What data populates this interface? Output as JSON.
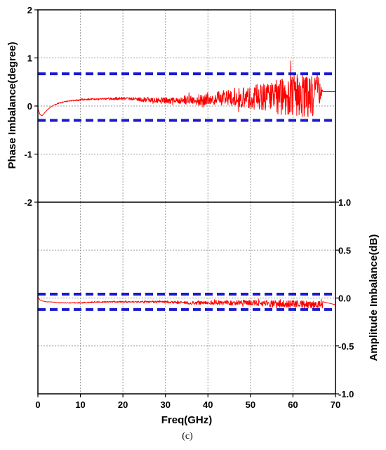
{
  "chart_data": [
    {
      "type": "line",
      "panel": "top",
      "xlim": [
        0,
        70
      ],
      "ylim": [
        -2,
        2
      ],
      "x_ticks": [],
      "y_ticks": [
        "-2",
        "-1",
        "0",
        "1",
        "2"
      ],
      "ylabel": "Phase Imbalance(degree)",
      "grid": true,
      "series": [
        {
          "color": "#ff0000",
          "x": [
            0,
            0.5,
            1,
            1.5,
            2,
            3,
            4,
            5,
            6,
            7,
            8,
            10,
            12,
            14,
            16,
            18,
            20,
            22,
            24,
            26,
            28,
            30,
            32,
            34,
            36,
            38,
            40,
            42,
            44,
            46,
            48,
            50,
            52,
            54,
            56,
            58,
            60,
            62,
            64,
            66,
            67,
            70
          ],
          "y": [
            -0.05,
            -0.18,
            -0.2,
            -0.15,
            -0.1,
            -0.02,
            0.03,
            0.06,
            0.08,
            0.1,
            0.11,
            0.13,
            0.14,
            0.15,
            0.15,
            0.15,
            0.16,
            0.15,
            0.14,
            0.13,
            0.12,
            0.11,
            0.11,
            0.12,
            0.13,
            0.13,
            0.14,
            0.15,
            0.16,
            0.17,
            0.18,
            0.18,
            0.19,
            0.2,
            0.2,
            0.21,
            0.21,
            0.22,
            0.22,
            0.22,
            0.3,
            0.3
          ],
          "noise_amplitude": [
            0,
            0,
            0,
            0,
            0,
            0,
            0.01,
            0.01,
            0.01,
            0.01,
            0.01,
            0.02,
            0.02,
            0.02,
            0.02,
            0.03,
            0.03,
            0.03,
            0.04,
            0.05,
            0.06,
            0.07,
            0.07,
            0.08,
            0.1,
            0.12,
            0.14,
            0.16,
            0.18,
            0.2,
            0.22,
            0.25,
            0.27,
            0.3,
            0.38,
            0.4,
            0.45,
            0.45,
            0.45,
            0.45,
            0,
            0
          ]
        },
        {
          "color": "#1a1acc",
          "style": "dashed",
          "x": [
            0,
            70
          ],
          "y": [
            0.67,
            0.67
          ]
        },
        {
          "color": "#1a1acc",
          "style": "dashed",
          "x": [
            0,
            70
          ],
          "y": [
            -0.3,
            -0.3
          ]
        }
      ]
    },
    {
      "type": "line",
      "panel": "bottom",
      "xlim": [
        0,
        70
      ],
      "ylim": [
        -1,
        1
      ],
      "x_ticks": [
        "0",
        "10",
        "20",
        "30",
        "40",
        "50",
        "60",
        "70"
      ],
      "y_ticks": [
        "-1.0",
        "-0.5",
        "0.0",
        "0.5",
        "1.0"
      ],
      "y_axis_side": "right",
      "xlabel": "Freq(GHz)",
      "ylabel": "Amplitude Imbalance(dB)",
      "grid": true,
      "series": [
        {
          "color": "#ff0000",
          "x": [
            0,
            0.5,
            1,
            2,
            3,
            5,
            7,
            10,
            15,
            20,
            25,
            30,
            35,
            40,
            45,
            50,
            55,
            60,
            65,
            67
          ],
          "y": [
            0.01,
            -0.02,
            -0.03,
            -0.04,
            -0.04,
            -0.05,
            -0.05,
            -0.05,
            -0.04,
            -0.04,
            -0.04,
            -0.04,
            -0.05,
            -0.05,
            -0.05,
            -0.05,
            -0.06,
            -0.06,
            -0.07,
            -0.07
          ],
          "noise_amplitude": [
            0,
            0,
            0,
            0,
            0,
            0.003,
            0.003,
            0.005,
            0.006,
            0.007,
            0.008,
            0.01,
            0.015,
            0.02,
            0.025,
            0.03,
            0.035,
            0.04,
            0.04,
            0.04
          ]
        },
        {
          "color": "#1a1acc",
          "style": "dashed",
          "x": [
            0,
            70
          ],
          "y": [
            0.04,
            0.04
          ]
        },
        {
          "color": "#1a1acc",
          "style": "dashed",
          "x": [
            0,
            70
          ],
          "y": [
            -0.12,
            -0.12
          ]
        }
      ]
    }
  ],
  "caption": "(c)"
}
